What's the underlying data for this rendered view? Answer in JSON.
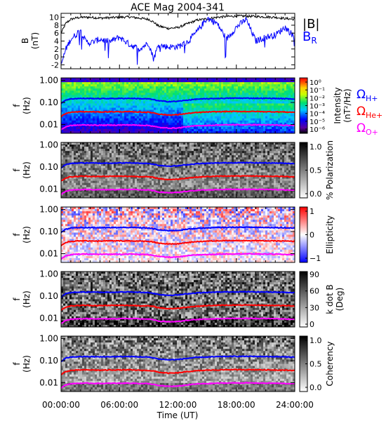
{
  "chart_data": {
    "title": "ACE Mag 2004-341",
    "xlabel": "Time (UT)",
    "x_ticks": [
      "00:00:00",
      "06:00:00",
      "12:00:00",
      "18:00:00",
      "24:00:00"
    ],
    "panels": [
      {
        "type": "line",
        "ylabel": "B",
        "yunit": "(nT)",
        "ylim": [
          -3,
          11
        ],
        "y_ticks": [
          "10",
          "8",
          "6",
          "4",
          "2",
          "0",
          "-2"
        ],
        "legend": [
          "|B|",
          "B",
          "R"
        ],
        "series": [
          {
            "name": "|B|",
            "color": "#000000",
            "x_hours": [
              0,
              0.5,
              1,
              1.5,
              2,
              3,
              4,
              5,
              6,
              7,
              8,
              9,
              9.5,
              10,
              11,
              12,
              13,
              14,
              15,
              16,
              17,
              18,
              19,
              20,
              21,
              22,
              23,
              24
            ],
            "values": [
              6.0,
              8.5,
              9.5,
              9.8,
              10.0,
              10.0,
              9.8,
              9.9,
              10.0,
              10.1,
              9.8,
              9.5,
              8.8,
              7.8,
              7.2,
              7.4,
              8.4,
              9.3,
              9.6,
              10.0,
              10.2,
              10.3,
              10.3,
              10.2,
              10.1,
              10.0,
              9.7,
              9.5
            ]
          },
          {
            "name": "B R",
            "color": "#0000ff",
            "x_hours": [
              0,
              0.5,
              1,
              1.5,
              2,
              2.5,
              3,
              4,
              5,
              6,
              7,
              8,
              9,
              9.5,
              10,
              11,
              12,
              13,
              14,
              15,
              16,
              17,
              18,
              19,
              20,
              21,
              22,
              23,
              24
            ],
            "values": [
              -2,
              2,
              4.5,
              5.5,
              7,
              4,
              3.5,
              4.5,
              3.8,
              5,
              3.2,
              2,
              3.5,
              -0.5,
              3,
              2.5,
              2.6,
              3.8,
              6.5,
              9.8,
              8.5,
              4.5,
              7.5,
              9.5,
              4,
              5,
              5.5,
              7.5,
              5
            ]
          }
        ]
      },
      {
        "type": "heatmap",
        "ylabel": "f",
        "yunit": "(Hz)",
        "y_ticks": [
          "1.00",
          "0.10",
          "0.01"
        ],
        "colorbar": {
          "title": "Intensity",
          "unit": "(nT²/Hz)",
          "scale": "rainbow",
          "ticks": [
            "10⁰",
            "10⁻¹",
            "10⁻²",
            "10⁻³",
            "10⁻⁴",
            "10⁻⁵",
            "10⁻⁶"
          ]
        },
        "legend": [
          {
            "main": "Ω",
            "sub": "H+",
            "color": "#0000ff"
          },
          {
            "main": "Ω",
            "sub": "He+",
            "color": "#ff0000"
          },
          {
            "main": "Ω",
            "sub": "O+",
            "color": "#ff00ff"
          }
        ]
      },
      {
        "type": "heatmap",
        "ylabel": "f",
        "yunit": "(Hz)",
        "y_ticks": [
          "1.00",
          "0.10",
          "0.01"
        ],
        "colorbar": {
          "title": "% Polarization",
          "unit": "",
          "scale": "gray",
          "ticks": [
            "1.0",
            "0.5",
            "0.0"
          ]
        }
      },
      {
        "type": "heatmap",
        "ylabel": "f",
        "yunit": "(Hz)",
        "y_ticks": [
          "1.00",
          "0.10",
          "0.01"
        ],
        "colorbar": {
          "title": "Ellipticity",
          "unit": "",
          "scale": "diverging",
          "ticks": [
            "1",
            "0",
            "−1"
          ]
        }
      },
      {
        "type": "heatmap",
        "ylabel": "f",
        "yunit": "(Hz)",
        "y_ticks": [
          "1.00",
          "0.10",
          "0.01"
        ],
        "colorbar": {
          "title": "k dot B",
          "unit": "(Deg)",
          "scale": "gray",
          "ticks": [
            "90",
            "60",
            "30",
            "0"
          ]
        }
      },
      {
        "type": "heatmap",
        "ylabel": "f",
        "yunit": "(Hz)",
        "y_ticks": [
          "1.00",
          "0.10",
          "0.01"
        ],
        "colorbar": {
          "title": "Coherency",
          "unit": "",
          "scale": "gray",
          "ticks": [
            "1.0",
            "0.5",
            "0.0"
          ]
        }
      }
    ],
    "gyro_frequencies_hz": {
      "x_hours": [
        0,
        0.5,
        1,
        1.5,
        2,
        3,
        4,
        5,
        6,
        7,
        8,
        9,
        9.5,
        10,
        11,
        12,
        13,
        14,
        15,
        16,
        17,
        18,
        19,
        20,
        21,
        22,
        23,
        24
      ],
      "H+": [
        0.09,
        0.13,
        0.145,
        0.15,
        0.152,
        0.152,
        0.149,
        0.151,
        0.152,
        0.154,
        0.149,
        0.145,
        0.134,
        0.119,
        0.11,
        0.113,
        0.128,
        0.142,
        0.146,
        0.152,
        0.155,
        0.157,
        0.157,
        0.155,
        0.154,
        0.152,
        0.148,
        0.145
      ],
      "He+": [
        0.023,
        0.032,
        0.036,
        0.037,
        0.038,
        0.038,
        0.037,
        0.038,
        0.038,
        0.038,
        0.037,
        0.036,
        0.034,
        0.03,
        0.027,
        0.028,
        0.032,
        0.035,
        0.037,
        0.038,
        0.039,
        0.039,
        0.039,
        0.039,
        0.038,
        0.038,
        0.037,
        0.036
      ],
      "O+": [
        0.0057,
        0.008,
        0.009,
        0.0093,
        0.0095,
        0.0095,
        0.0093,
        0.0094,
        0.0095,
        0.0096,
        0.0093,
        0.0091,
        0.0084,
        0.0074,
        0.0069,
        0.007,
        0.008,
        0.0089,
        0.0091,
        0.0095,
        0.0097,
        0.0098,
        0.0098,
        0.0097,
        0.0096,
        0.0095,
        0.0092,
        0.0091
      ]
    }
  }
}
